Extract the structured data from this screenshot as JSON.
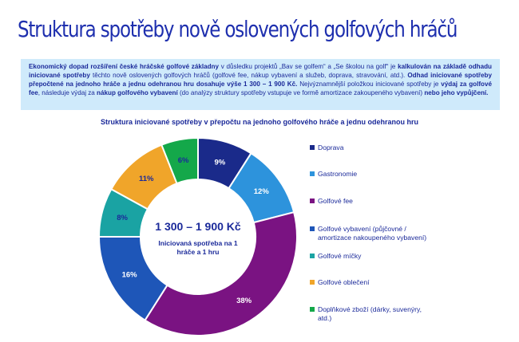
{
  "page": {
    "title": "Struktura spotřeby nově oslovených golfových hráčů"
  },
  "intro_parts": [
    {
      "text": "Ekonomický dopad rozšíření české hráčské golfové základny",
      "bold": true
    },
    {
      "text": " v důsledku projektů „Bav se golfem“ a „Se školou na golf“ je ",
      "bold": false
    },
    {
      "text": "kalkulován na základě odhadu iniciované spotřeby",
      "bold": true
    },
    {
      "text": " těchto nově oslovených golfových hráčů (golfové fee, nákup vybavení a služeb, doprava, stravování, atd.). ",
      "bold": false
    },
    {
      "text": "Odhad iniciované spotřeby přepočtené na jednoho hráče a jednu odehranou hru dosahuje výše 1 300 – 1 900 Kč.",
      "bold": true
    },
    {
      "text": " Nejvýznamnější položkou iniciované spotřeby je ",
      "bold": false
    },
    {
      "text": "výdaj za golfové fee",
      "bold": true
    },
    {
      "text": ", následuje výdaj za ",
      "bold": false
    },
    {
      "text": "nákup golfového vybavení",
      "bold": true
    },
    {
      "text": " (do analýzy struktury spotřeby vstupuje ve formě amortizace zakoupeného vybavení) ",
      "bold": false
    },
    {
      "text": "nebo jeho vypůjčení.",
      "bold": true
    }
  ],
  "center": {
    "value": "1 300 – 1 900 Kč",
    "subtitle": "Iniciovaná spotřeba na 1 hráče a 1 hru"
  },
  "chart_data": {
    "type": "pie",
    "title": "Struktura iniciované spotřeby v přepočtu na jednoho golfového hráče a jednu odehranou hru",
    "donut": true,
    "start_angle_deg": 0,
    "direction": "clockwise",
    "legend_position": "right",
    "slices": [
      {
        "label": "Doprava",
        "value": 9,
        "display": "9%",
        "color": "#1a2a8a",
        "label_color": "#ffffff"
      },
      {
        "label": "Gastronomie",
        "value": 12,
        "display": "12%",
        "color": "#2d93dc",
        "label_color": "#ffffff"
      },
      {
        "label": "Golfové fee",
        "value": 38,
        "display": "38%",
        "color": "#7a1382",
        "label_color": "#ffffff"
      },
      {
        "label": "Golfové vybavení (půjčovné / amortizace nakoupeného vybavení)",
        "value": 16,
        "display": "16%",
        "color": "#1e56b8",
        "label_color": "#ffffff"
      },
      {
        "label": "Golfové míčky",
        "value": 8,
        "display": "8%",
        "color": "#1aa3a3",
        "label_color": "#1b2a9a"
      },
      {
        "label": "Golfové oblečení",
        "value": 11,
        "display": "11%",
        "color": "#f0a52a",
        "label_color": "#1b2a9a"
      },
      {
        "label": "Doplňkové zboží (dárky, suvenýry, atd.)",
        "value": 6,
        "display": "6%",
        "color": "#14a84a",
        "label_color": "#1b2a9a"
      }
    ]
  }
}
